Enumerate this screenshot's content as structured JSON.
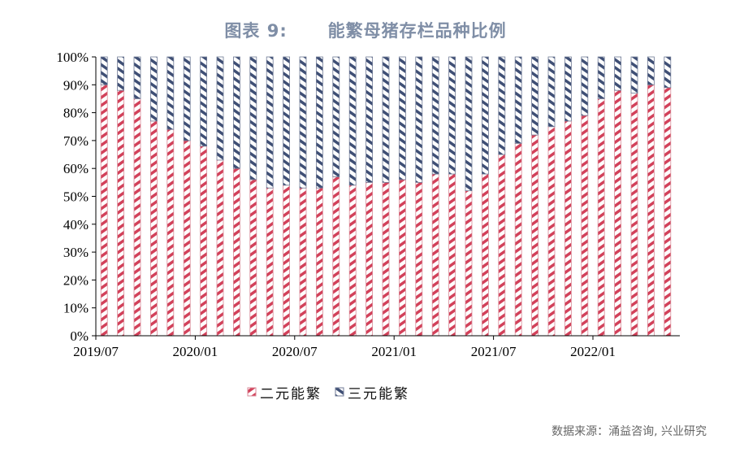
{
  "title": "图表 9:      能繁母猪存栏品种比例",
  "source": "数据来源：涌益咨询, 兴业研究",
  "chart_data": {
    "type": "bar",
    "stacked": true,
    "title": "图表 9:      能繁母猪存栏品种比例",
    "categories": [
      "2019/07",
      "2019/08",
      "2019/09",
      "2019/10",
      "2019/11",
      "2019/12",
      "2020/01",
      "2020/02",
      "2020/03",
      "2020/04",
      "2020/05",
      "2020/06",
      "2020/07",
      "2020/08",
      "2020/09",
      "2020/10",
      "2020/11",
      "2020/12",
      "2021/01",
      "2021/02",
      "2021/03",
      "2021/04",
      "2021/05",
      "2021/06",
      "2021/07",
      "2021/08",
      "2021/09",
      "2021/10",
      "2021/11",
      "2021/12",
      "2022/01",
      "2022/02",
      "2022/03",
      "2022/04",
      "2022/05"
    ],
    "x_tick_labels": [
      "2019/07",
      "2020/01",
      "2020/07",
      "2021/01",
      "2021/07",
      "2022/01"
    ],
    "y_tick_labels": [
      "0%",
      "10%",
      "20%",
      "30%",
      "40%",
      "50%",
      "60%",
      "70%",
      "80%",
      "90%",
      "100%"
    ],
    "ylim": [
      0,
      100
    ],
    "grid": false,
    "legend_position": "bottom",
    "series": [
      {
        "name": "二元能繁",
        "color": "#d2415a",
        "values": [
          90,
          88,
          85,
          77,
          74,
          70,
          68,
          63,
          60,
          56,
          53,
          54,
          53,
          53,
          57,
          54,
          55,
          55,
          56,
          55,
          58,
          58,
          52,
          58,
          65,
          69,
          72,
          75,
          77,
          79,
          85,
          88,
          87,
          90,
          89
        ]
      },
      {
        "name": "三元能繁",
        "color": "#3f4f75",
        "values": [
          10,
          12,
          15,
          23,
          26,
          30,
          32,
          37,
          40,
          44,
          47,
          46,
          47,
          47,
          43,
          46,
          45,
          45,
          44,
          45,
          42,
          42,
          48,
          42,
          35,
          31,
          28,
          25,
          23,
          21,
          15,
          12,
          13,
          10,
          11
        ]
      }
    ]
  }
}
